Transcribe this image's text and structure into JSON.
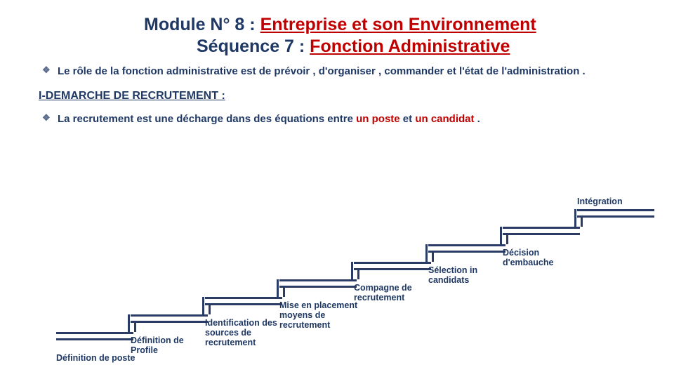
{
  "title": {
    "line1_prefix": "Module N° 8 : ",
    "line1_red": "Entreprise et son Environnement",
    "line2_prefix": "Séquence 7 : ",
    "line2_red": "Fonction Administrative",
    "fontsize": 25
  },
  "bullets": {
    "b1": "Le rôle de la fonction administrative est de prévoir , d'organiser , commander et l'état de l'administration .",
    "heading": "I-DEMARCHE DE RECRUTEMENT :",
    "b2_pre": "La recrutement est une décharge dans des équations entre ",
    "b2_red1": "un poste",
    "b2_mid": " et ",
    "b2_red2": "un candidat",
    "b2_post": " ."
  },
  "colors": {
    "navy": "#1f3864",
    "red": "#c00000",
    "step_border": "#2a3b66",
    "bg": "#ffffff"
  },
  "staircase": {
    "type": "flowchart",
    "step_width": 110,
    "step_rise": 25,
    "tread_thickness": 12,
    "border_width": 3,
    "label_fontsize": 12.5,
    "steps": [
      {
        "label": "Définition de poste",
        "label_pos": "below"
      },
      {
        "label": "Définition de Profile",
        "label_pos": "below"
      },
      {
        "label": "Identification des sources de recrutement",
        "label_pos": "below"
      },
      {
        "label": "Mise en placement moyens de recrutement",
        "label_pos": "below"
      },
      {
        "label": "Compagne de recrutement",
        "label_pos": "below"
      },
      {
        "label": "Sélection in candidats",
        "label_pos": "below"
      },
      {
        "label": "Décision d'embauche",
        "label_pos": "below"
      },
      {
        "label": "Intégration",
        "label_pos": "above"
      }
    ]
  }
}
